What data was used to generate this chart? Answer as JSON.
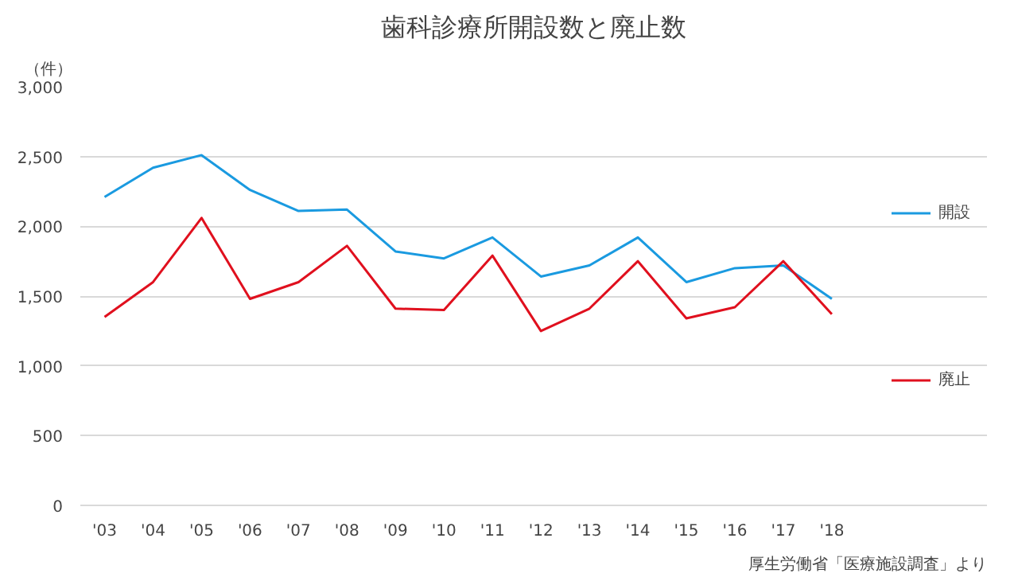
{
  "chart_data": {
    "type": "line",
    "title": "歯科診療所開設数と廃止数",
    "ylabel": "（件）",
    "categories": [
      "'03",
      "'04",
      "'05",
      "'06",
      "'07",
      "'08",
      "'09",
      "'10",
      "'11",
      "'12",
      "'13",
      "'14",
      "'15",
      "'16",
      "'17",
      "'18"
    ],
    "series": [
      {
        "name": "開設",
        "color": "#1a9ae0",
        "values": [
          2210,
          2420,
          2510,
          2260,
          2110,
          2120,
          1820,
          1770,
          1920,
          1640,
          1720,
          1920,
          1600,
          1700,
          1720,
          1480
        ]
      },
      {
        "name": "廃止",
        "color": "#e0101e",
        "values": [
          1350,
          1600,
          2060,
          1480,
          1600,
          1860,
          1410,
          1400,
          1790,
          1250,
          1410,
          1750,
          1340,
          1420,
          1750,
          1370
        ]
      }
    ],
    "ylim": [
      0,
      3000
    ],
    "yticks": [
      0,
      {
        "value": 500,
        "label": "500"
      },
      {
        "value": 1000,
        "label": "1,000"
      },
      {
        "value": 1500,
        "label": "1,500"
      },
      {
        "value": 2000,
        "label": "2,000"
      },
      {
        "value": 2500,
        "label": "2,500"
      },
      {
        "value": 3000,
        "label": "3,000"
      }
    ],
    "grid": "y",
    "legend": "right",
    "marker": "none",
    "annotations": [
      "厚生労働省「医療施設調査」より"
    ]
  }
}
